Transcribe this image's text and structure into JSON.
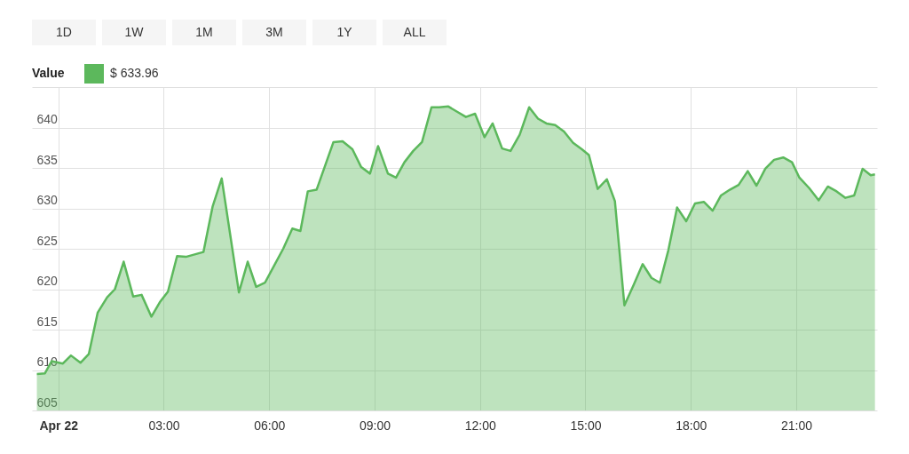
{
  "chart_data": {
    "type": "area",
    "annotations": [
      "1D",
      "1W",
      "1M",
      "3M",
      "1Y",
      "ALL"
    ],
    "legend_title": "Value",
    "legend": "top left",
    "grid": true,
    "xlim": [
      -0.75,
      23.3
    ],
    "xticks": [
      {
        "value": 0,
        "label": "Apr 22"
      },
      {
        "value": 3,
        "label": "03:00"
      },
      {
        "value": 6,
        "label": "06:00"
      },
      {
        "value": 9,
        "label": "09:00"
      },
      {
        "value": 12,
        "label": "12:00"
      },
      {
        "value": 15,
        "label": "15:00"
      },
      {
        "value": 18,
        "label": "18:00"
      },
      {
        "value": 21,
        "label": "21:00"
      }
    ],
    "ylim": [
      605,
      645
    ],
    "yticks": [
      605,
      610,
      615,
      620,
      625,
      630,
      635,
      640,
      {
        "value": 645,
        "label": null
      }
    ],
    "x": [
      -0.61,
      -0.38,
      -0.19,
      0.13,
      0.36,
      0.63,
      0.87,
      1.12,
      1.39,
      1.61,
      1.86,
      2.13,
      2.37,
      2.65,
      2.89,
      3.12,
      3.38,
      3.63,
      4.13,
      4.39,
      4.65,
      5.14,
      5.39,
      5.63,
      5.88,
      6.14,
      6.4,
      6.66,
      6.89,
      7.1,
      7.35,
      7.83,
      8.09,
      8.37,
      8.62,
      8.87,
      9.1,
      9.38,
      9.61,
      9.85,
      10.1,
      10.35,
      10.62,
      10.84,
      11.1,
      11.37,
      11.6,
      11.86,
      12.13,
      12.36,
      12.63,
      12.87,
      13.13,
      13.4,
      13.65,
      13.89,
      14.14,
      14.39,
      14.65,
      14.9,
      15.1,
      15.35,
      15.61,
      15.84,
      16.11,
      16.37,
      16.63,
      16.88,
      17.12,
      17.36,
      17.61,
      17.87,
      18.12,
      18.37,
      18.62,
      18.86,
      19.11,
      19.36,
      19.62,
      19.87,
      20.12,
      20.37,
      20.63,
      20.88,
      21.09,
      21.37,
      21.64,
      21.9,
      22.15,
      22.4,
      22.65,
      22.89,
      23.12,
      23.24
    ],
    "series": [
      {
        "name": "$ 633.96",
        "color": "#5cb85c",
        "values": [
          609.5,
          609.6,
          611.1,
          610.8,
          611.8,
          610.9,
          612.0,
          617.1,
          619.0,
          620.0,
          623.4,
          619.1,
          619.3,
          616.6,
          618.4,
          619.7,
          624.1,
          624.0,
          624.6,
          630.2,
          633.7,
          619.6,
          623.4,
          620.3,
          620.8,
          622.9,
          625.0,
          627.5,
          627.2,
          632.1,
          632.3,
          638.2,
          638.3,
          637.3,
          635.1,
          634.3,
          637.7,
          634.3,
          633.8,
          635.7,
          637.1,
          638.2,
          642.5,
          642.5,
          642.6,
          641.9,
          641.3,
          641.7,
          638.8,
          640.5,
          637.4,
          637.1,
          639.1,
          642.5,
          641.1,
          640.5,
          640.3,
          639.5,
          638.1,
          637.3,
          636.6,
          632.4,
          633.6,
          630.9,
          618.0,
          620.5,
          623.1,
          621.4,
          620.8,
          624.8,
          630.1,
          628.4,
          630.6,
          630.8,
          629.7,
          631.6,
          632.3,
          632.9,
          634.6,
          632.8,
          634.9,
          636.0,
          636.3,
          635.7,
          633.8,
          632.5,
          631.0,
          632.7,
          632.1,
          631.3,
          631.6,
          634.9,
          634.1,
          634.2
        ]
      }
    ]
  }
}
